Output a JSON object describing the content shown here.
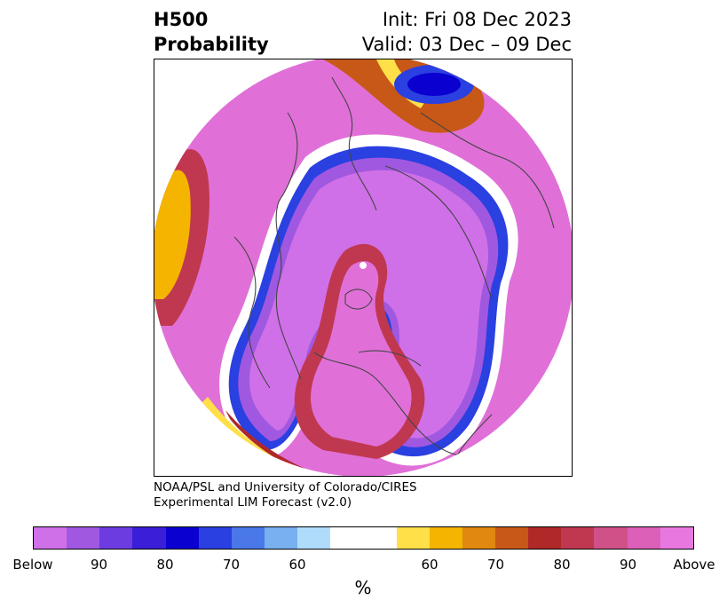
{
  "title": {
    "left_line1": "H500",
    "left_line2": "Probability",
    "right_line1": "Init: Fri 08 Dec 2023",
    "right_line2": "Valid: 03 Dec – 09 Dec"
  },
  "credit": {
    "line1": "NOAA/PSL and University of Colorado/CIRES",
    "line2": "Experimental LIM Forecast (v2.0)"
  },
  "colorbar": {
    "colors": [
      "#d070e8",
      "#a058e0",
      "#6c3ce0",
      "#3a1ed8",
      "#0a00d0",
      "#2a40e0",
      "#4a78e8",
      "#78b0f0",
      "#b0dcfc",
      "#ffffff",
      "#ffe048",
      "#f4b400",
      "#e08810",
      "#c85818",
      "#b02828",
      "#c03850",
      "#d05088",
      "#dc60b8",
      "#e878e0"
    ],
    "labels": [
      "Below",
      "90",
      "80",
      "70",
      "60",
      "60",
      "70",
      "80",
      "90",
      "Above"
    ],
    "unit": "%"
  },
  "map": {
    "projection": "north polar stereographic",
    "fill_color": "#e070d8",
    "coastline_color": "#444444"
  }
}
